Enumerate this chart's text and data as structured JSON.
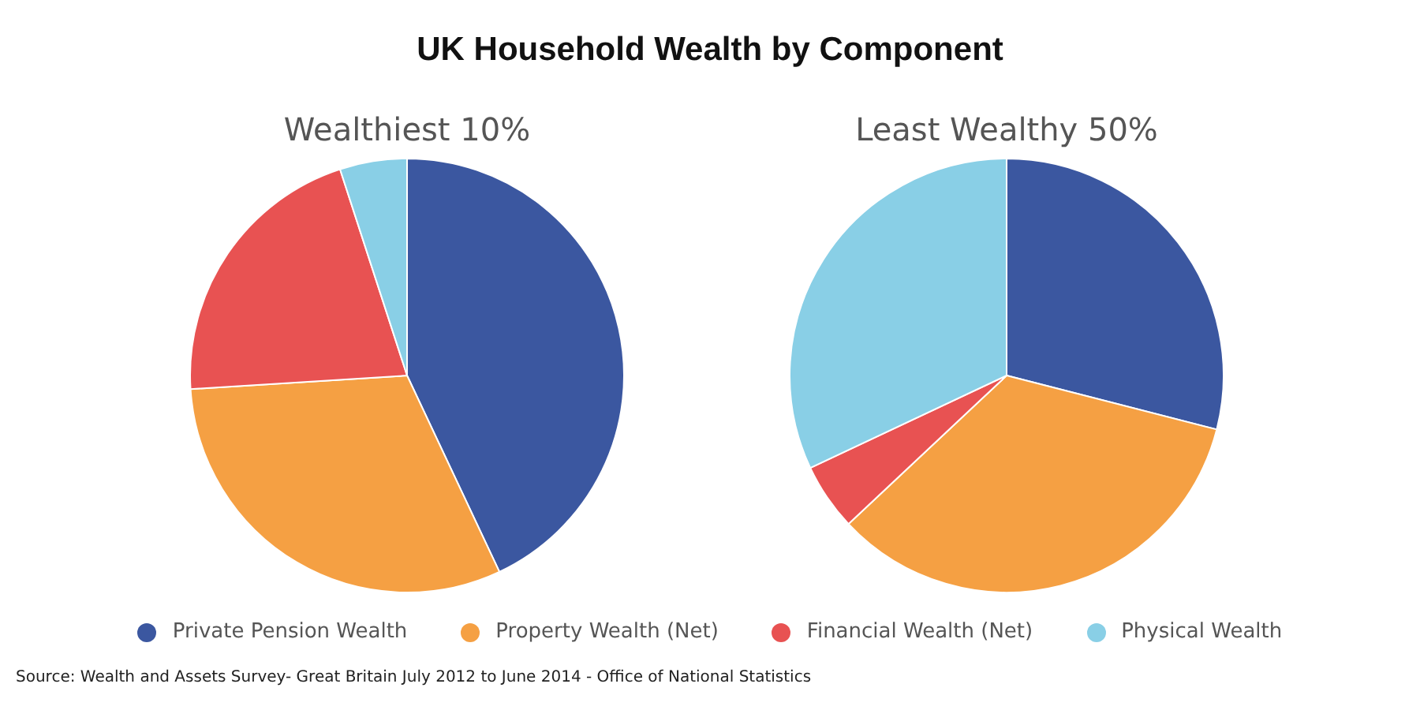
{
  "chart_data": [
    {
      "type": "pie",
      "title": "UK Household Wealth by Component",
      "subtitle": "Wealthiest 10%",
      "categories": [
        "Private Pension Wealth",
        "Property Wealth (Net)",
        "Financial Wealth (Net)",
        "Physical Wealth"
      ],
      "values": [
        43,
        31,
        21,
        5
      ],
      "colors": [
        "#3b57a0",
        "#f5a043",
        "#e85252",
        "#89cfe6"
      ],
      "legend": "bottom",
      "annotations": [
        "Source: Wealth and Assets Survey- Great Britain July 2012 to June 2014 - Office of National Statistics"
      ]
    },
    {
      "type": "pie",
      "subtitle": "Least Wealthy 50%",
      "categories": [
        null,
        null,
        null,
        null
      ],
      "values": [
        29,
        34,
        5,
        32
      ],
      "colors": [
        "#3b57a0",
        "#f5a043",
        "#e85252",
        "#89cfe6"
      ]
    }
  ]
}
